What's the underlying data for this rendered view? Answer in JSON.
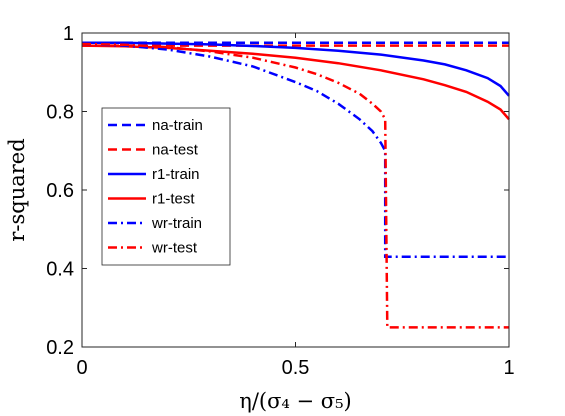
{
  "chart_data": {
    "type": "line",
    "xlabel": "η/(σ₄ − σ₅)",
    "ylabel": "r-squared",
    "xlim": [
      0,
      1
    ],
    "ylim": [
      0.2,
      1
    ],
    "xticks": [
      "0",
      "0.5",
      "1"
    ],
    "yticks": [
      "0.2",
      "0.4",
      "0.6",
      "0.8",
      "1"
    ],
    "grid": false,
    "legend_position": "left-center",
    "colors": {
      "blue": "#0000ff",
      "red": "#ff0000"
    },
    "series": [
      {
        "name": "na-train",
        "color": "#0000ff",
        "style": "dashed",
        "x": [
          0,
          1
        ],
        "y": [
          0.975,
          0.975
        ]
      },
      {
        "name": "na-test",
        "color": "#ff0000",
        "style": "dashed",
        "x": [
          0,
          1
        ],
        "y": [
          0.968,
          0.968
        ]
      },
      {
        "name": "r1-train",
        "color": "#0000ff",
        "style": "solid",
        "x": [
          0,
          0.1,
          0.2,
          0.3,
          0.4,
          0.5,
          0.6,
          0.7,
          0.8,
          0.85,
          0.9,
          0.95,
          0.98,
          1.0
        ],
        "y": [
          0.975,
          0.975,
          0.973,
          0.971,
          0.967,
          0.962,
          0.955,
          0.945,
          0.93,
          0.92,
          0.905,
          0.885,
          0.865,
          0.84
        ]
      },
      {
        "name": "r1-test",
        "color": "#ff0000",
        "style": "solid",
        "x": [
          0,
          0.1,
          0.2,
          0.3,
          0.4,
          0.5,
          0.6,
          0.7,
          0.8,
          0.85,
          0.9,
          0.95,
          0.98,
          1.0
        ],
        "y": [
          0.968,
          0.966,
          0.962,
          0.955,
          0.947,
          0.937,
          0.923,
          0.905,
          0.882,
          0.867,
          0.85,
          0.825,
          0.805,
          0.78
        ]
      },
      {
        "name": "wr-train",
        "color": "#0000ff",
        "style": "dashdot",
        "x": [
          0,
          0.1,
          0.2,
          0.3,
          0.4,
          0.5,
          0.55,
          0.6,
          0.65,
          0.68,
          0.7,
          0.71,
          0.71,
          1.0
        ],
        "y": [
          0.972,
          0.968,
          0.958,
          0.94,
          0.915,
          0.875,
          0.852,
          0.82,
          0.78,
          0.75,
          0.72,
          0.7,
          0.43,
          0.43
        ]
      },
      {
        "name": "wr-test",
        "color": "#ff0000",
        "style": "dashdot",
        "x": [
          0,
          0.1,
          0.2,
          0.3,
          0.4,
          0.5,
          0.55,
          0.6,
          0.65,
          0.68,
          0.7,
          0.71,
          0.715,
          1.0
        ],
        "y": [
          0.972,
          0.97,
          0.964,
          0.953,
          0.937,
          0.912,
          0.895,
          0.873,
          0.845,
          0.82,
          0.8,
          0.78,
          0.25,
          0.25
        ]
      }
    ]
  }
}
